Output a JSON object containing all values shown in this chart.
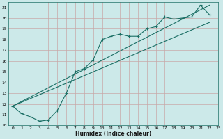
{
  "xlabel": "Humidex (Indice chaleur)",
  "ylabel": "",
  "bg_color": "#cce9e9",
  "grid_color": "#b8d8d8",
  "line_color": "#1a6e64",
  "xlim": [
    -0.5,
    23
  ],
  "ylim": [
    10,
    21.5
  ],
  "xticks": [
    0,
    1,
    2,
    3,
    4,
    5,
    6,
    7,
    8,
    9,
    10,
    11,
    12,
    13,
    14,
    15,
    16,
    17,
    18,
    19,
    20,
    21,
    22,
    23
  ],
  "yticks": [
    10,
    11,
    12,
    13,
    14,
    15,
    16,
    17,
    18,
    19,
    20,
    21
  ],
  "series1_x": [
    0,
    1,
    2,
    3,
    4,
    5,
    6,
    7,
    8,
    9,
    10,
    11,
    12,
    13,
    14,
    15,
    16,
    17,
    18,
    19,
    20,
    21,
    22
  ],
  "series1_y": [
    11.8,
    11.1,
    10.8,
    10.4,
    10.5,
    11.4,
    13.0,
    15.0,
    15.3,
    16.1,
    18.0,
    18.3,
    18.5,
    18.3,
    18.3,
    19.0,
    19.2,
    20.1,
    19.9,
    20.0,
    20.1,
    21.2,
    20.3
  ],
  "series2_x": [
    0,
    22
  ],
  "series2_y": [
    11.8,
    19.6
  ],
  "series3_x": [
    0,
    22
  ],
  "series3_y": [
    11.8,
    21.2
  ]
}
